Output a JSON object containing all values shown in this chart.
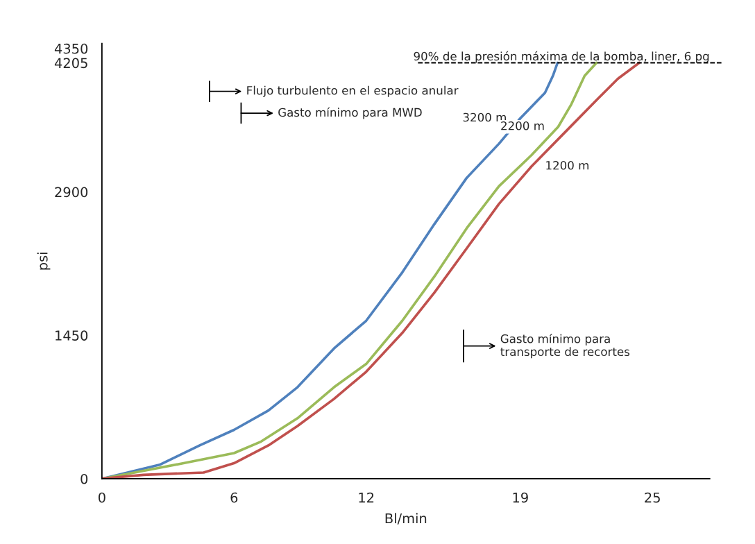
{
  "chart_data": {
    "type": "line",
    "xlabel": "Bl/min",
    "ylabel": "psi",
    "xlim": [
      0,
      27.6
    ],
    "ylim": [
      0,
      4400
    ],
    "xticks": [
      0,
      6,
      12,
      19,
      25
    ],
    "yticks": [
      0,
      1450,
      2900,
      4205,
      4350
    ],
    "grid": false,
    "legend": false,
    "marker": "none",
    "line_style": "solid",
    "series": [
      {
        "name": "3200 m",
        "color": "#4f81bd",
        "x": [
          0,
          2.62,
          4.44,
          6,
          7.56,
          8.88,
          10.54,
          12,
          13.64,
          15.1,
          16.57,
          18.03,
          19,
          20.12,
          20.48,
          20.69
        ],
        "values": [
          0,
          141,
          337,
          494,
          690,
          925,
          1317,
          1597,
          2086,
          2575,
          3043,
          3387,
          3644,
          3902,
          4073,
          4205
        ]
      },
      {
        "name": "2200 m",
        "color": "#9bbb59",
        "x": [
          0,
          3.71,
          6,
          7.23,
          8.88,
          10.54,
          12,
          13.64,
          15.1,
          16.57,
          18.03,
          19.51,
          20.72,
          21.32,
          21.92,
          22.46
        ],
        "values": [
          0,
          157,
          259,
          376,
          611,
          925,
          1160,
          1597,
          2045,
          2534,
          2957,
          3272,
          3558,
          3787,
          4073,
          4205
        ]
      },
      {
        "name": "1200 m",
        "color": "#c0504d",
        "x": [
          0,
          1.89,
          4.62,
          6,
          7.56,
          8.88,
          10.54,
          12,
          13.64,
          15.1,
          16.57,
          18.03,
          19.51,
          21.02,
          22.53,
          23.43,
          24.4
        ],
        "values": [
          0,
          39,
          63,
          157,
          337,
          533,
          807,
          1081,
          1474,
          1882,
          2330,
          2778,
          3158,
          3501,
          3844,
          4044,
          4205
        ]
      }
    ],
    "ref_lines": [
      {
        "axis": "y",
        "value": 4205,
        "label": "90% de la presión máxima de la bomba, liner, 6 pg",
        "color": "#000000",
        "line_style": "dashed"
      }
    ],
    "annotations": [
      "Flujo turbulento en el espacio anular",
      "Gasto mínimo para MWD",
      "Gasto mínimo para\ntransporte de recortes"
    ]
  }
}
